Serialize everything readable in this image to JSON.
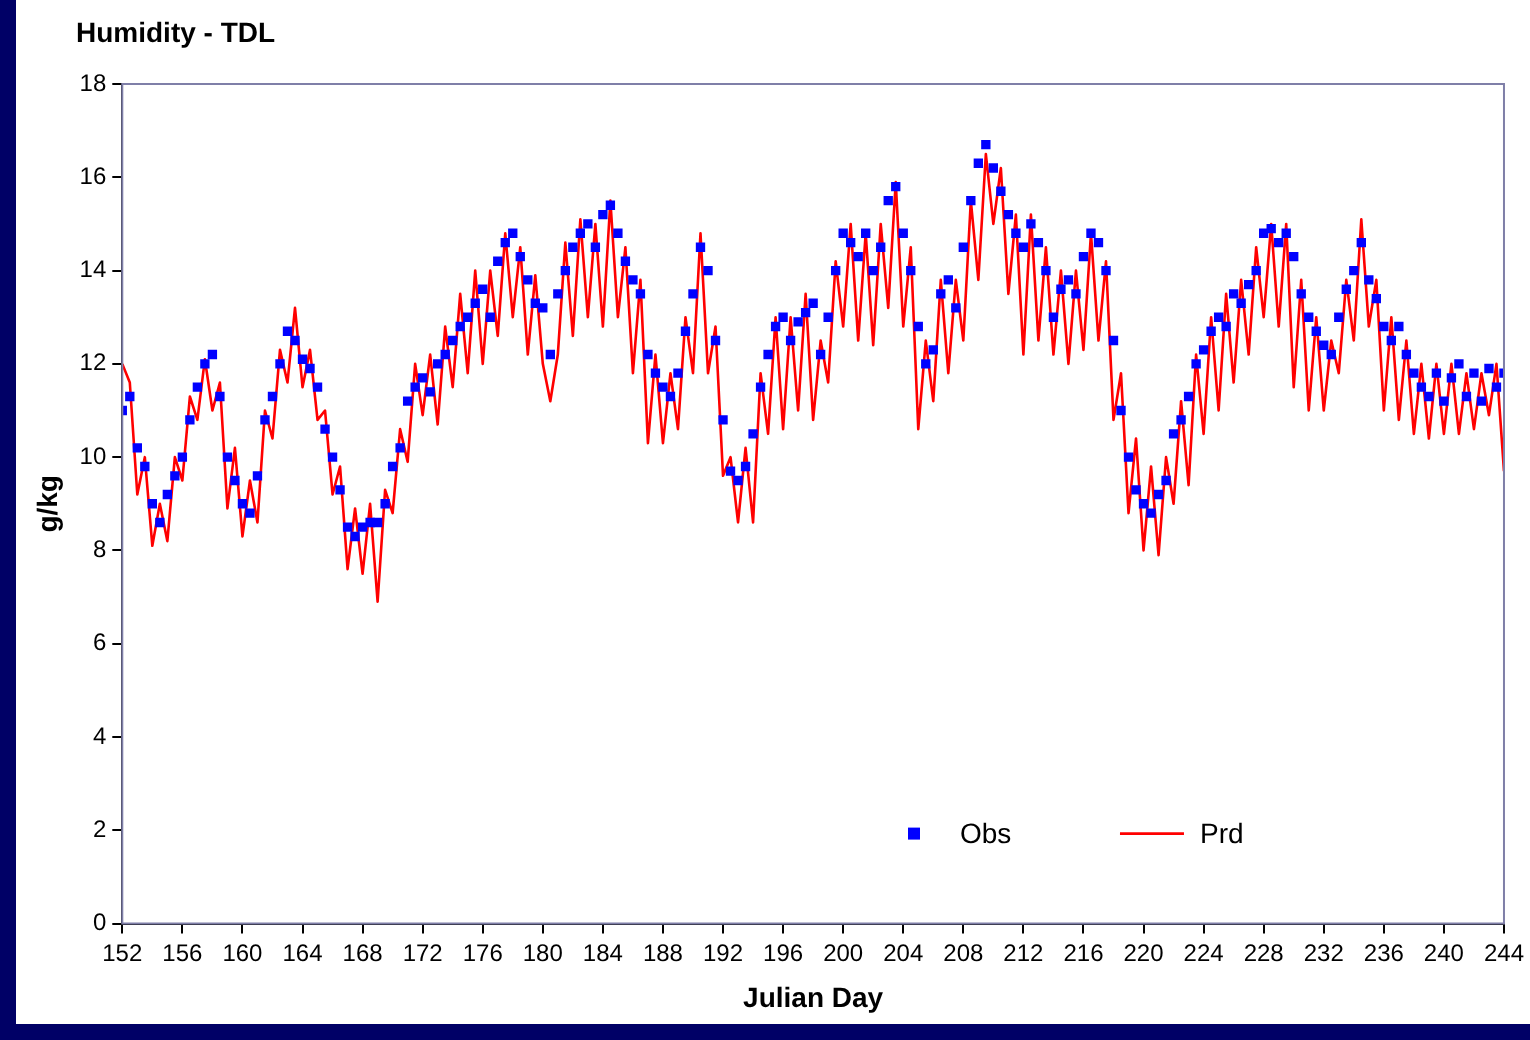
{
  "chart_data": {
    "type": "scatter",
    "title": "Humidity - TDL",
    "xlabel": "Julian Day",
    "ylabel": "g/kg",
    "xlim": [
      152,
      244
    ],
    "xticks": [
      152,
      156,
      160,
      164,
      168,
      172,
      176,
      180,
      184,
      188,
      192,
      196,
      200,
      204,
      208,
      212,
      216,
      220,
      224,
      228,
      232,
      236,
      240,
      244
    ],
    "ylim": [
      0,
      18
    ],
    "yticks": [
      0,
      2,
      4,
      6,
      8,
      10,
      12,
      14,
      16,
      18
    ],
    "grid": false,
    "legend": "bottom right",
    "x": [
      152,
      152.5,
      153,
      153.5,
      154,
      154.5,
      155,
      155.5,
      156,
      156.5,
      157,
      157.5,
      158,
      158.5,
      159,
      159.5,
      160,
      160.5,
      161,
      161.5,
      162,
      162.5,
      163,
      163.5,
      164,
      164.5,
      165,
      165.5,
      166,
      166.5,
      167,
      167.5,
      168,
      168.5,
      169,
      169.5,
      170,
      170.5,
      171,
      171.5,
      172,
      172.5,
      173,
      173.5,
      174,
      174.5,
      175,
      175.5,
      176,
      176.5,
      177,
      177.5,
      178,
      178.5,
      179,
      179.5,
      180,
      180.5,
      181,
      181.5,
      182,
      182.5,
      183,
      183.5,
      184,
      184.5,
      185,
      185.5,
      186,
      186.5,
      187,
      187.5,
      188,
      188.5,
      189,
      189.5,
      190,
      190.5,
      191,
      191.5,
      192,
      192.5,
      193,
      193.5,
      194,
      194.5,
      195,
      195.5,
      196,
      196.5,
      197,
      197.5,
      198,
      198.5,
      199,
      199.5,
      200,
      200.5,
      201,
      201.5,
      202,
      202.5,
      203,
      203.5,
      204,
      204.5,
      205,
      205.5,
      206,
      206.5,
      207,
      207.5,
      208,
      208.5,
      209,
      209.5,
      210,
      210.5,
      211,
      211.5,
      212,
      212.5,
      213,
      213.5,
      214,
      214.5,
      215,
      215.5,
      216,
      216.5,
      217,
      217.5,
      218,
      218.5,
      219,
      219.5,
      220,
      220.5,
      221,
      221.5,
      222,
      222.5,
      223,
      223.5,
      224,
      224.5,
      225,
      225.5,
      226,
      226.5,
      227,
      227.5,
      228,
      228.5,
      229,
      229.5,
      230,
      230.5,
      231,
      231.5,
      232,
      232.5,
      233,
      233.5,
      234,
      234.5,
      235,
      235.5,
      236,
      236.5,
      237,
      237.5,
      238,
      238.5,
      239,
      239.5,
      240,
      240.5,
      241,
      241.5,
      242,
      242.5,
      243,
      243.5,
      244
    ],
    "series": [
      {
        "name": "Obs",
        "type": "scatter",
        "marker": "square",
        "color": "#0000ff",
        "values": [
          11.0,
          11.3,
          10.2,
          9.8,
          9.0,
          8.6,
          9.2,
          9.6,
          10.0,
          10.8,
          11.5,
          12.0,
          12.2,
          11.3,
          10.0,
          9.5,
          9.0,
          8.8,
          9.6,
          10.8,
          11.3,
          12.0,
          12.7,
          12.5,
          12.1,
          11.9,
          11.5,
          10.6,
          10.0,
          9.3,
          8.5,
          8.3,
          8.5,
          8.6,
          8.6,
          9.0,
          9.8,
          10.2,
          11.2,
          11.5,
          11.7,
          11.4,
          12.0,
          12.2,
          12.5,
          12.8,
          13.0,
          13.3,
          13.6,
          13.0,
          14.2,
          14.6,
          14.8,
          14.3,
          13.8,
          13.3,
          13.2,
          12.2,
          13.5,
          14.0,
          14.5,
          14.8,
          15.0,
          14.5,
          15.2,
          15.4,
          14.8,
          14.2,
          13.8,
          13.5,
          12.2,
          11.8,
          11.5,
          11.3,
          11.8,
          12.7,
          13.5,
          14.5,
          14.0,
          12.5,
          10.8,
          9.7,
          9.5,
          9.8,
          10.5,
          11.5,
          12.2,
          12.8,
          13.0,
          12.5,
          12.9,
          13.1,
          13.3,
          12.2,
          13.0,
          14.0,
          14.8,
          14.6,
          14.3,
          14.8,
          14.0,
          14.5,
          15.5,
          15.8,
          14.8,
          14.0,
          12.8,
          12.0,
          12.3,
          13.5,
          13.8,
          13.2,
          14.5,
          15.5,
          16.3,
          16.7,
          16.2,
          15.7,
          15.2,
          14.8,
          14.5,
          15.0,
          14.6,
          14.0,
          13.0,
          13.6,
          13.8,
          13.5,
          14.3,
          14.8,
          14.6,
          14.0,
          12.5,
          11.0,
          10.0,
          9.3,
          9.0,
          8.8,
          9.2,
          9.5,
          10.5,
          10.8,
          11.3,
          12.0,
          12.3,
          12.7,
          13.0,
          12.8,
          13.5,
          13.3,
          13.7,
          14.0,
          14.8,
          14.9,
          14.6,
          14.8,
          14.3,
          13.5,
          13.0,
          12.7,
          12.4,
          12.2,
          13.0,
          13.6,
          14.0,
          14.6,
          13.8,
          13.4,
          12.8,
          12.5,
          12.8,
          12.2,
          11.8,
          11.5,
          11.3,
          11.8,
          11.2,
          11.7,
          12.0,
          11.3,
          11.8,
          11.2,
          11.9,
          11.5,
          11.8
        ]
      },
      {
        "name": "Prd",
        "type": "line",
        "marker": "none",
        "line_style": "solid",
        "color": "#ff0000",
        "values": [
          12.0,
          11.6,
          9.2,
          10.0,
          8.1,
          9.0,
          8.2,
          10.0,
          9.5,
          11.3,
          10.8,
          12.1,
          11.0,
          11.6,
          8.9,
          10.2,
          8.3,
          9.5,
          8.6,
          11.0,
          10.4,
          12.3,
          11.6,
          13.2,
          11.5,
          12.3,
          10.8,
          11.0,
          9.2,
          9.8,
          7.6,
          8.9,
          7.5,
          9.0,
          6.9,
          9.3,
          8.8,
          10.6,
          9.9,
          12.0,
          10.9,
          12.2,
          10.7,
          12.8,
          11.5,
          13.5,
          11.8,
          14.0,
          12.0,
          14.0,
          12.6,
          14.8,
          13.0,
          14.5,
          12.2,
          13.9,
          12.0,
          11.2,
          12.2,
          14.6,
          12.6,
          15.1,
          13.0,
          15.0,
          12.8,
          15.5,
          13.0,
          14.5,
          11.8,
          13.8,
          10.3,
          12.2,
          10.3,
          11.8,
          10.6,
          13.0,
          11.8,
          14.8,
          11.8,
          12.8,
          9.6,
          10.0,
          8.6,
          10.2,
          8.6,
          11.8,
          10.5,
          13.0,
          10.6,
          13.0,
          11.0,
          13.5,
          10.8,
          12.5,
          11.6,
          14.2,
          12.8,
          15.0,
          12.5,
          14.8,
          12.4,
          15.0,
          13.2,
          15.9,
          12.8,
          14.5,
          10.6,
          12.5,
          11.2,
          13.8,
          11.8,
          13.8,
          12.5,
          15.5,
          13.8,
          16.5,
          15.0,
          16.2,
          13.5,
          15.2,
          12.2,
          15.2,
          12.5,
          14.5,
          12.2,
          14.0,
          12.0,
          14.0,
          12.3,
          14.8,
          12.5,
          14.2,
          10.8,
          11.8,
          8.8,
          10.4,
          8.0,
          9.8,
          7.9,
          10.0,
          9.0,
          11.2,
          9.4,
          12.2,
          10.5,
          13.0,
          11.0,
          13.5,
          11.6,
          13.8,
          12.2,
          14.5,
          13.0,
          15.0,
          12.8,
          15.0,
          11.5,
          13.8,
          11.0,
          13.0,
          11.0,
          12.5,
          11.8,
          13.8,
          12.5,
          15.1,
          12.8,
          13.8,
          11.0,
          13.0,
          10.8,
          12.5,
          10.5,
          12.0,
          10.4,
          12.0,
          10.5,
          12.0,
          10.5,
          11.8,
          10.6,
          11.8,
          10.9,
          12.0,
          9.7
        ]
      }
    ]
  }
}
